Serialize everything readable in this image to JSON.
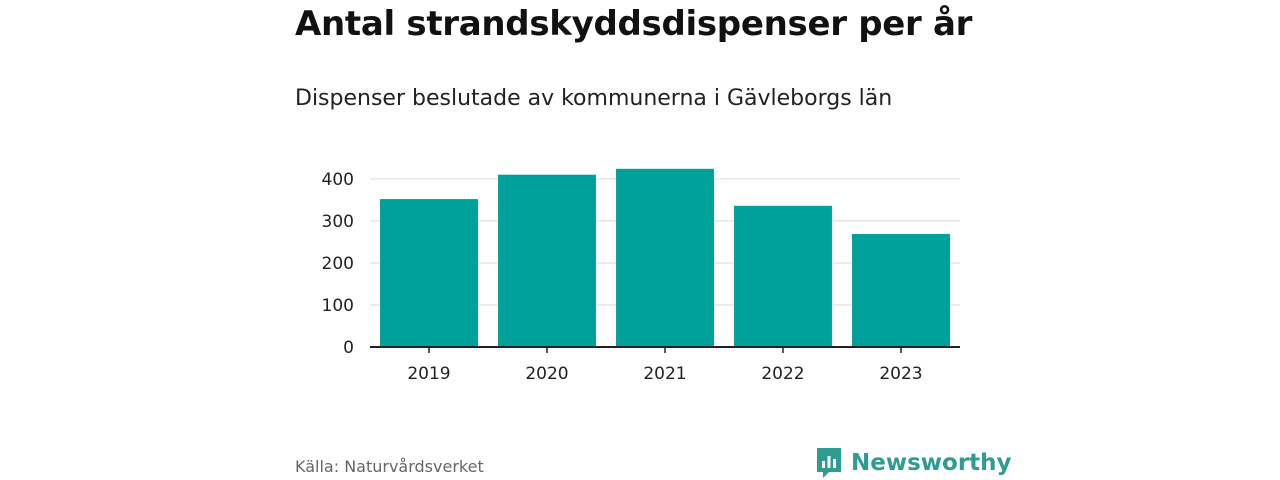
{
  "header": {
    "title": "Antal strandskyddsdispenser per år",
    "subtitle": "Dispenser beslutade av kommunerna i Gävleborgs län"
  },
  "footer": {
    "source": "Källa: Naturvårdsverket",
    "brand": "Newsworthy",
    "brand_icon": "bar-chart-speech-bubble-icon",
    "brand_color": "#2f9c92"
  },
  "chart_data": {
    "type": "bar",
    "title": "Antal strandskyddsdispenser per år",
    "subtitle": "Dispenser beslutade av kommunerna i Gävleborgs län",
    "categories": [
      "2019",
      "2020",
      "2021",
      "2022",
      "2023"
    ],
    "values": [
      352,
      410,
      424,
      336,
      269
    ],
    "xlabel": "",
    "ylabel": "",
    "ylim": [
      0,
      445
    ],
    "yticks": [
      0,
      100,
      200,
      300,
      400
    ],
    "grid": true,
    "bar_color": "#00a19a",
    "gridline_color": "#d9d9d9",
    "axis_color": "#222222"
  }
}
